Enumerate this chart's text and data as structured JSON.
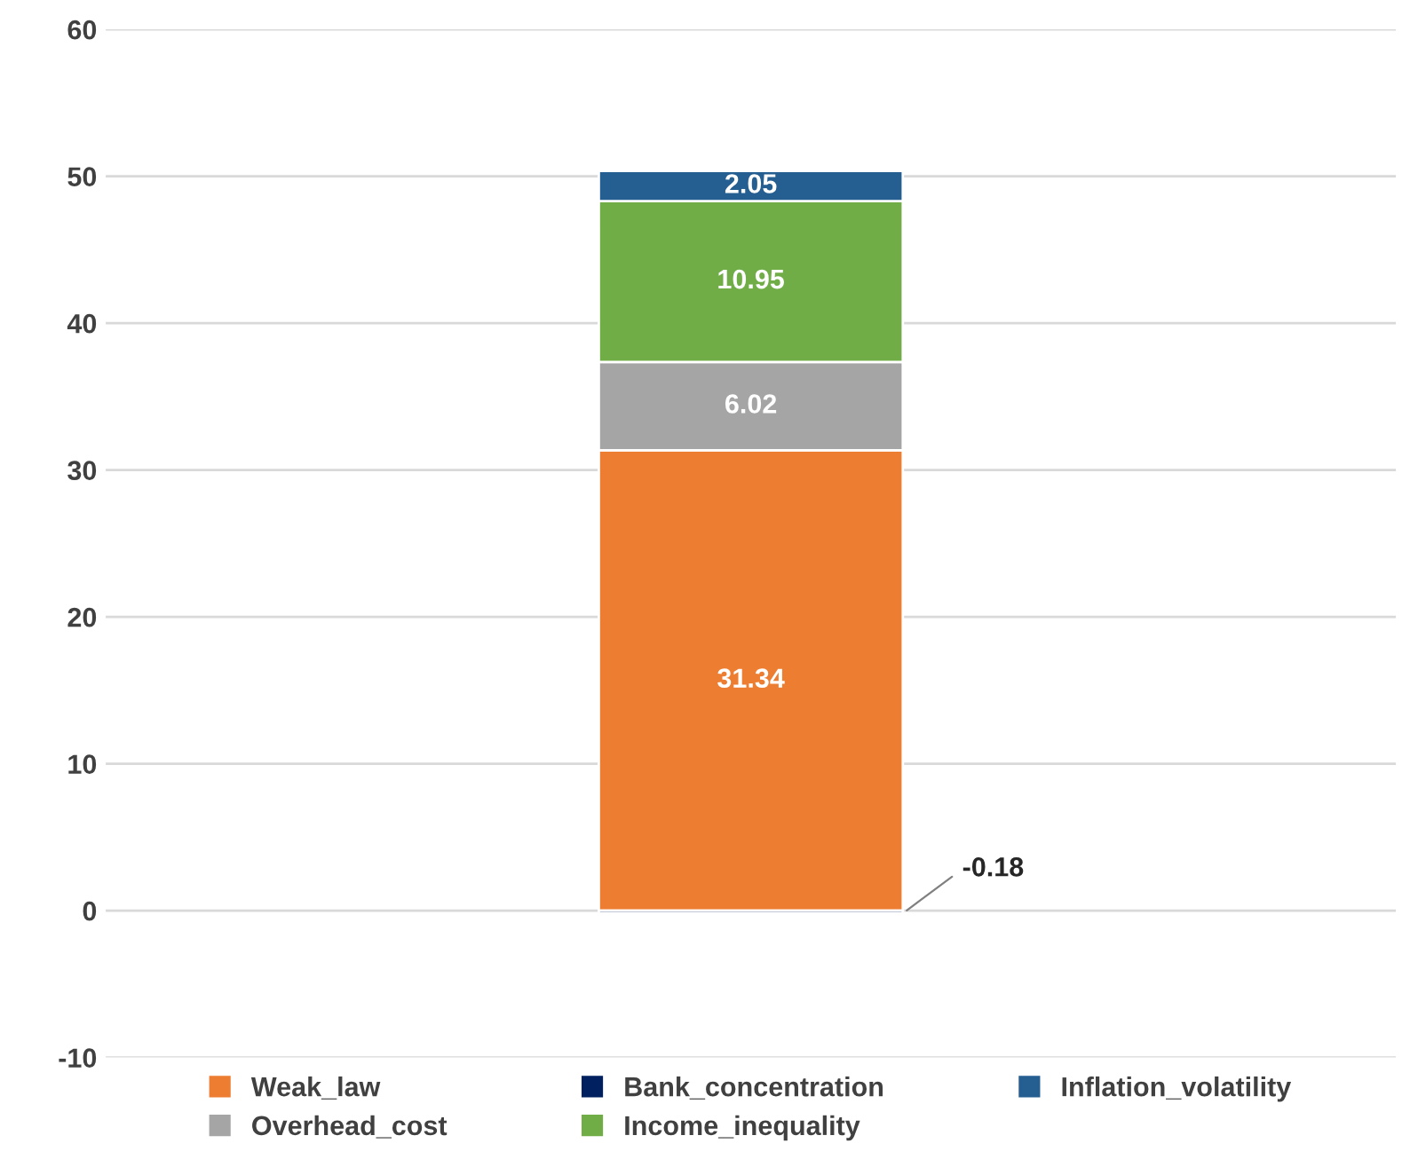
{
  "chart_data": {
    "type": "bar",
    "stacked": true,
    "categories": [
      null
    ],
    "series": [
      {
        "name": "Weak_law",
        "color": "#ed7d31",
        "values": [
          31.34
        ]
      },
      {
        "name": "Overhead_cost",
        "color": "#a5a5a5",
        "values": [
          6.02
        ]
      },
      {
        "name": "Bank_concentration",
        "color": "#002060",
        "values": [
          -0.18
        ]
      },
      {
        "name": "Income_inequality",
        "color": "#70ad47",
        "values": [
          10.95
        ]
      },
      {
        "name": "Inflation_volatility",
        "color": "#255e91",
        "values": [
          2.05
        ]
      }
    ],
    "ylim": [
      -10,
      60
    ],
    "yticks": [
      -10,
      0,
      10,
      20,
      30,
      40,
      50,
      60
    ],
    "grid": "y",
    "legend": "bottom",
    "data_labels": true,
    "tick_labels": "y"
  }
}
